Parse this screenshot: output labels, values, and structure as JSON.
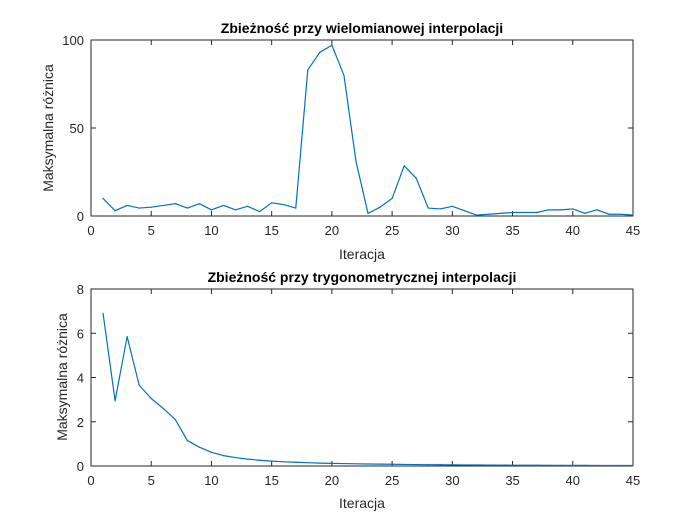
{
  "chart_data": [
    {
      "type": "line",
      "title": "Zbieżność przy wielomianowej interpolacji",
      "xlabel": "Iteracja",
      "ylabel": "Maksymalna różnica",
      "xlim": [
        0,
        45
      ],
      "ylim": [
        0,
        100
      ],
      "xticks": [
        "0",
        "5",
        "10",
        "15",
        "20",
        "25",
        "30",
        "35",
        "40",
        "45"
      ],
      "yticks": [
        "0",
        "50",
        "100"
      ],
      "grid": false,
      "line_color": "#0072BD",
      "x": [
        1,
        2,
        3,
        4,
        5,
        6,
        7,
        8,
        9,
        10,
        11,
        12,
        13,
        14,
        15,
        16,
        17,
        18,
        19,
        20,
        21,
        22,
        23,
        24,
        25,
        26,
        27,
        28,
        29,
        30,
        31,
        32,
        33,
        34,
        35,
        36,
        37,
        38,
        39,
        40,
        41,
        42,
        43,
        44,
        45
      ],
      "y": [
        10,
        3,
        6,
        4.5,
        5,
        6,
        7,
        4.5,
        7,
        3.5,
        6,
        3.5,
        5.5,
        2.5,
        7.5,
        6.5,
        4.5,
        83,
        93,
        97,
        80,
        31,
        1.5,
        5,
        10,
        28.5,
        21.5,
        4.5,
        4,
        5.5,
        3,
        0.5,
        1,
        1.5,
        2,
        2,
        2,
        3.5,
        3.5,
        4,
        1.5,
        3.5,
        1,
        1,
        0.5
      ]
    },
    {
      "type": "line",
      "title": "Zbieżność przy trygonometrycznej interpolacji",
      "xlabel": "Iteracja",
      "ylabel": "Maksymalna różnica",
      "xlim": [
        0,
        45
      ],
      "ylim": [
        0,
        8
      ],
      "xticks": [
        "0",
        "5",
        "10",
        "15",
        "20",
        "25",
        "30",
        "35",
        "40",
        "45"
      ],
      "yticks": [
        "0",
        "2",
        "4",
        "6",
        "8"
      ],
      "grid": false,
      "line_color": "#0072BD",
      "x": [
        1,
        2,
        3,
        4,
        5,
        6,
        7,
        8,
        9,
        10,
        11,
        12,
        13,
        14,
        15,
        16,
        17,
        18,
        19,
        20,
        21,
        22,
        23,
        24,
        25,
        26,
        27,
        28,
        29,
        30,
        31,
        32,
        33,
        34,
        35,
        36,
        37,
        38,
        39,
        40,
        41,
        42,
        43,
        44,
        45
      ],
      "y": [
        6.9,
        2.95,
        5.85,
        3.65,
        3.05,
        2.6,
        2.1,
        1.15,
        0.85,
        0.62,
        0.47,
        0.38,
        0.31,
        0.26,
        0.22,
        0.19,
        0.17,
        0.15,
        0.13,
        0.12,
        0.11,
        0.1,
        0.09,
        0.085,
        0.08,
        0.07,
        0.065,
        0.06,
        0.055,
        0.05,
        0.048,
        0.045,
        0.042,
        0.04,
        0.037,
        0.035,
        0.033,
        0.031,
        0.03,
        0.028,
        0.027,
        0.026,
        0.025,
        0.024,
        0.023
      ]
    }
  ]
}
